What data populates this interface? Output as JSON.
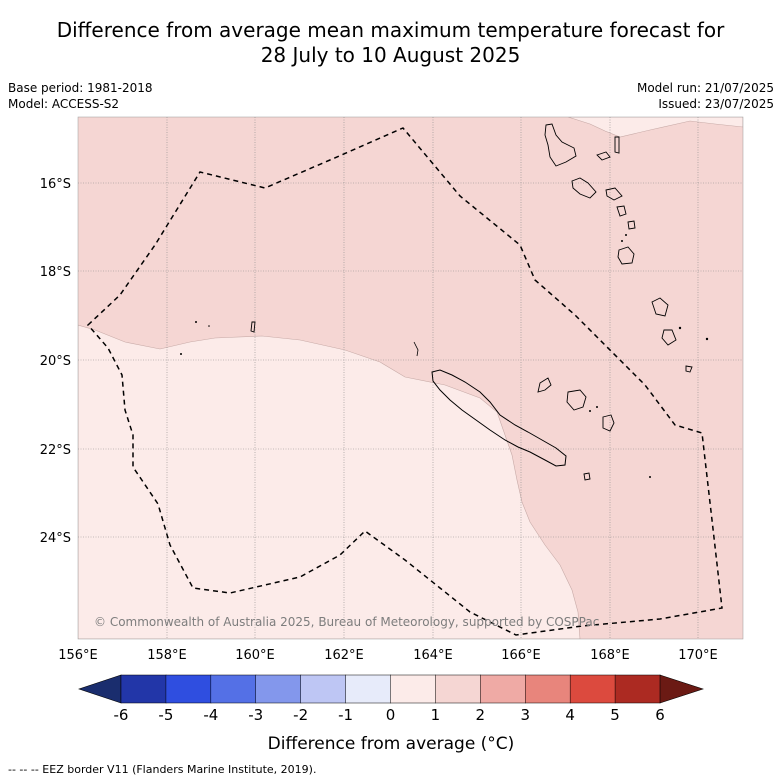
{
  "title_line1": "Difference from average mean maximum temperature forecast for",
  "title_line2": "28 July to 10 August 2025",
  "meta_left": {
    "base_period": "Base period: 1981-2018",
    "model": "Model: ACCESS-S2"
  },
  "meta_right": {
    "model_run": "Model run: 21/07/2025",
    "issued": "Issued: 23/07/2025"
  },
  "map": {
    "lat_labels": [
      "16°S",
      "18°S",
      "20°S",
      "22°S",
      "24°S"
    ],
    "lon_labels": [
      "156°E",
      "158°E",
      "160°E",
      "162°E",
      "164°E",
      "166°E",
      "168°E",
      "170°E"
    ],
    "copyright": "© Commonwealth of Australia 2025, Bureau of Meteorology, supported by COSPPac",
    "colors": {
      "anomaly_0_1": "#fcebe9",
      "anomaly_1_2": "#f5d6d3",
      "land_outline": "#000000",
      "grid": "#888888"
    }
  },
  "colorbar": {
    "ticks": [
      "-6",
      "-5",
      "-4",
      "-3",
      "-2",
      "-1",
      "0",
      "1",
      "2",
      "3",
      "4",
      "5",
      "6"
    ],
    "below_color": "#1a2d6e",
    "above_color": "#6b1a14",
    "colors": [
      "#2236a8",
      "#2f4ee0",
      "#5470e6",
      "#8397ec",
      "#bec6f4",
      "#e7ebfa",
      "#fcebe9",
      "#f5d6d3",
      "#efaaa5",
      "#e8857c",
      "#dc4a3e",
      "#ac2a22"
    ],
    "label": "Difference from average (°C)"
  },
  "footer": "--  --  -- EEZ border V11 (Flanders Marine Institute, 2019)."
}
